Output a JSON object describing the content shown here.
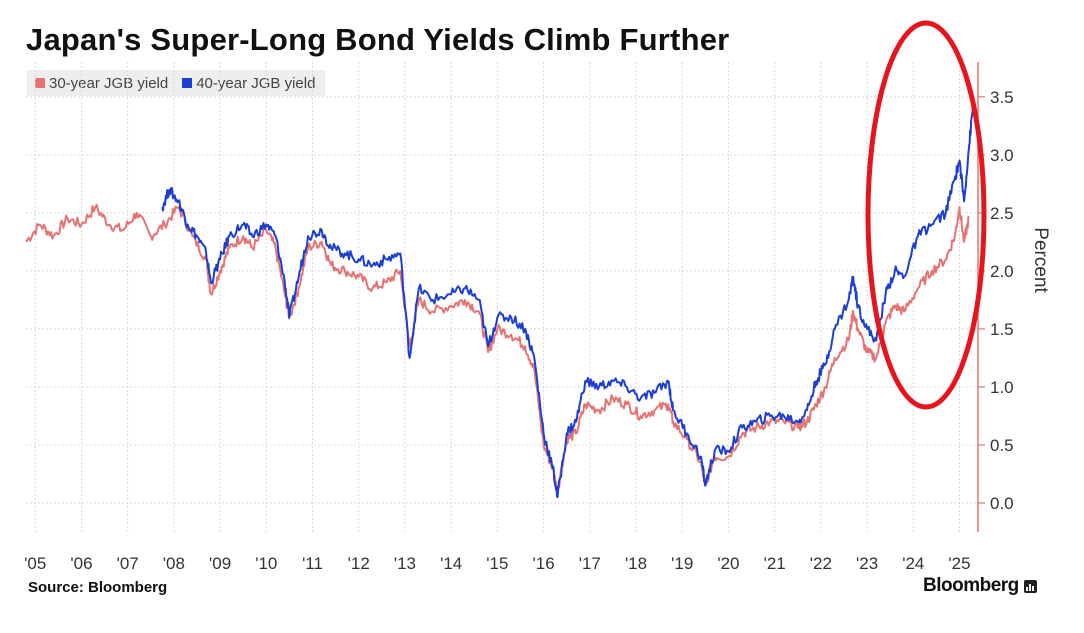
{
  "title": "Japan's Super-Long Bond Yields Climb Further",
  "source": "Source: Bloomberg",
  "brand": "Bloomberg",
  "colors": {
    "series_30y": "#e57373",
    "series_40y": "#1d3fd1",
    "annotation": "#e8141c",
    "grid": "#d9d9d9",
    "axis": "#e57373"
  },
  "chart_data": {
    "type": "line",
    "xlabel": "",
    "ylabel": "Percent",
    "ylim": [
      -0.25,
      3.8
    ],
    "yticks": [
      0.0,
      0.5,
      1.0,
      1.5,
      2.0,
      2.5,
      3.0,
      3.5
    ],
    "ytick_labels": [
      "0.0",
      "0.5",
      "1.0",
      "1.5",
      "2.0",
      "2.5",
      "3.0",
      "3.5"
    ],
    "xlim": [
      2005.0,
      2025.6
    ],
    "xticks": [
      2005.2,
      2006.2,
      2007.2,
      2008.2,
      2009.2,
      2010.2,
      2011.2,
      2012.2,
      2013.2,
      2014.2,
      2015.2,
      2016.2,
      2017.2,
      2018.2,
      2019.2,
      2020.2,
      2021.2,
      2022.2,
      2023.2,
      2024.2,
      2025.2
    ],
    "xtick_labels": [
      "'05",
      "'06",
      "'07",
      "'08",
      "'09",
      "'10",
      "'11",
      "'12",
      "'13",
      "'14",
      "'15",
      "'16",
      "'17",
      "'18",
      "'19",
      "'20",
      "'21",
      "'22",
      "'23",
      "'24",
      "'25"
    ],
    "grid": true,
    "legend_position": "top-left",
    "annotation": "red ellipse around 2023-2025 rise",
    "series": [
      {
        "name": "30-year JGB yield",
        "color": "#e57373",
        "points": [
          [
            2005.0,
            2.25
          ],
          [
            2005.3,
            2.4
          ],
          [
            2005.6,
            2.3
          ],
          [
            2005.9,
            2.45
          ],
          [
            2006.2,
            2.4
          ],
          [
            2006.5,
            2.55
          ],
          [
            2006.8,
            2.4
          ],
          [
            2007.1,
            2.35
          ],
          [
            2007.4,
            2.5
          ],
          [
            2007.7,
            2.3
          ],
          [
            2008.0,
            2.4
          ],
          [
            2008.3,
            2.55
          ],
          [
            2008.6,
            2.3
          ],
          [
            2008.9,
            2.1
          ],
          [
            2009.0,
            1.8
          ],
          [
            2009.2,
            2.0
          ],
          [
            2009.4,
            2.2
          ],
          [
            2009.7,
            2.3
          ],
          [
            2009.9,
            2.2
          ],
          [
            2010.2,
            2.35
          ],
          [
            2010.4,
            2.2
          ],
          [
            2010.6,
            1.8
          ],
          [
            2010.7,
            1.6
          ],
          [
            2010.9,
            1.85
          ],
          [
            2011.1,
            2.2
          ],
          [
            2011.4,
            2.25
          ],
          [
            2011.6,
            2.05
          ],
          [
            2011.9,
            2.0
          ],
          [
            2012.2,
            1.95
          ],
          [
            2012.5,
            1.85
          ],
          [
            2012.8,
            1.9
          ],
          [
            2013.1,
            2.0
          ],
          [
            2013.3,
            1.35
          ],
          [
            2013.5,
            1.75
          ],
          [
            2013.8,
            1.65
          ],
          [
            2014.2,
            1.7
          ],
          [
            2014.5,
            1.75
          ],
          [
            2014.8,
            1.65
          ],
          [
            2015.0,
            1.3
          ],
          [
            2015.2,
            1.5
          ],
          [
            2015.5,
            1.45
          ],
          [
            2015.8,
            1.35
          ],
          [
            2016.0,
            1.15
          ],
          [
            2016.2,
            0.5
          ],
          [
            2016.4,
            0.3
          ],
          [
            2016.5,
            0.1
          ],
          [
            2016.7,
            0.55
          ],
          [
            2016.9,
            0.6
          ],
          [
            2017.1,
            0.85
          ],
          [
            2017.4,
            0.8
          ],
          [
            2017.7,
            0.9
          ],
          [
            2018.0,
            0.85
          ],
          [
            2018.3,
            0.75
          ],
          [
            2018.6,
            0.8
          ],
          [
            2018.9,
            0.85
          ],
          [
            2019.0,
            0.7
          ],
          [
            2019.3,
            0.55
          ],
          [
            2019.6,
            0.35
          ],
          [
            2019.7,
            0.15
          ],
          [
            2019.9,
            0.4
          ],
          [
            2020.2,
            0.4
          ],
          [
            2020.5,
            0.6
          ],
          [
            2020.8,
            0.65
          ],
          [
            2021.1,
            0.7
          ],
          [
            2021.4,
            0.7
          ],
          [
            2021.7,
            0.65
          ],
          [
            2021.9,
            0.7
          ],
          [
            2022.1,
            0.85
          ],
          [
            2022.3,
            1.0
          ],
          [
            2022.5,
            1.25
          ],
          [
            2022.8,
            1.4
          ],
          [
            2022.9,
            1.65
          ],
          [
            2023.0,
            1.5
          ],
          [
            2023.2,
            1.3
          ],
          [
            2023.4,
            1.25
          ],
          [
            2023.6,
            1.55
          ],
          [
            2023.8,
            1.7
          ],
          [
            2024.0,
            1.65
          ],
          [
            2024.3,
            1.85
          ],
          [
            2024.6,
            2.0
          ],
          [
            2024.9,
            2.1
          ],
          [
            2025.1,
            2.3
          ],
          [
            2025.2,
            2.55
          ],
          [
            2025.3,
            2.25
          ],
          [
            2025.4,
            2.45
          ]
        ]
      },
      {
        "name": "40-year JGB yield",
        "color": "#1d3fd1",
        "points": [
          [
            2007.95,
            2.55
          ],
          [
            2008.1,
            2.7
          ],
          [
            2008.3,
            2.6
          ],
          [
            2008.5,
            2.4
          ],
          [
            2008.7,
            2.3
          ],
          [
            2008.9,
            2.15
          ],
          [
            2009.0,
            1.9
          ],
          [
            2009.2,
            2.1
          ],
          [
            2009.4,
            2.3
          ],
          [
            2009.7,
            2.4
          ],
          [
            2009.9,
            2.3
          ],
          [
            2010.2,
            2.4
          ],
          [
            2010.4,
            2.3
          ],
          [
            2010.6,
            1.9
          ],
          [
            2010.7,
            1.6
          ],
          [
            2010.9,
            1.95
          ],
          [
            2011.1,
            2.3
          ],
          [
            2011.4,
            2.35
          ],
          [
            2011.6,
            2.2
          ],
          [
            2011.9,
            2.15
          ],
          [
            2012.2,
            2.1
          ],
          [
            2012.5,
            2.05
          ],
          [
            2012.8,
            2.1
          ],
          [
            2013.1,
            2.15
          ],
          [
            2013.3,
            1.25
          ],
          [
            2013.5,
            1.85
          ],
          [
            2013.8,
            1.75
          ],
          [
            2014.2,
            1.8
          ],
          [
            2014.5,
            1.85
          ],
          [
            2014.8,
            1.75
          ],
          [
            2015.0,
            1.35
          ],
          [
            2015.2,
            1.6
          ],
          [
            2015.5,
            1.6
          ],
          [
            2015.8,
            1.5
          ],
          [
            2016.0,
            1.25
          ],
          [
            2016.2,
            0.6
          ],
          [
            2016.4,
            0.3
          ],
          [
            2016.5,
            0.05
          ],
          [
            2016.7,
            0.6
          ],
          [
            2016.9,
            0.7
          ],
          [
            2017.1,
            1.05
          ],
          [
            2017.4,
            1.0
          ],
          [
            2017.7,
            1.05
          ],
          [
            2018.0,
            1.0
          ],
          [
            2018.3,
            0.9
          ],
          [
            2018.6,
            0.95
          ],
          [
            2018.9,
            1.05
          ],
          [
            2019.0,
            0.8
          ],
          [
            2019.3,
            0.6
          ],
          [
            2019.6,
            0.4
          ],
          [
            2019.7,
            0.15
          ],
          [
            2019.9,
            0.45
          ],
          [
            2020.2,
            0.45
          ],
          [
            2020.5,
            0.65
          ],
          [
            2020.8,
            0.7
          ],
          [
            2021.1,
            0.75
          ],
          [
            2021.4,
            0.75
          ],
          [
            2021.7,
            0.7
          ],
          [
            2021.9,
            0.8
          ],
          [
            2022.1,
            1.05
          ],
          [
            2022.3,
            1.2
          ],
          [
            2022.5,
            1.5
          ],
          [
            2022.8,
            1.75
          ],
          [
            2022.9,
            1.95
          ],
          [
            2023.0,
            1.7
          ],
          [
            2023.2,
            1.5
          ],
          [
            2023.4,
            1.4
          ],
          [
            2023.6,
            1.8
          ],
          [
            2023.8,
            2.0
          ],
          [
            2024.0,
            1.95
          ],
          [
            2024.3,
            2.3
          ],
          [
            2024.6,
            2.4
          ],
          [
            2024.9,
            2.5
          ],
          [
            2025.1,
            2.8
          ],
          [
            2025.2,
            2.95
          ],
          [
            2025.3,
            2.6
          ],
          [
            2025.4,
            3.05
          ],
          [
            2025.5,
            3.45
          ]
        ]
      }
    ]
  }
}
